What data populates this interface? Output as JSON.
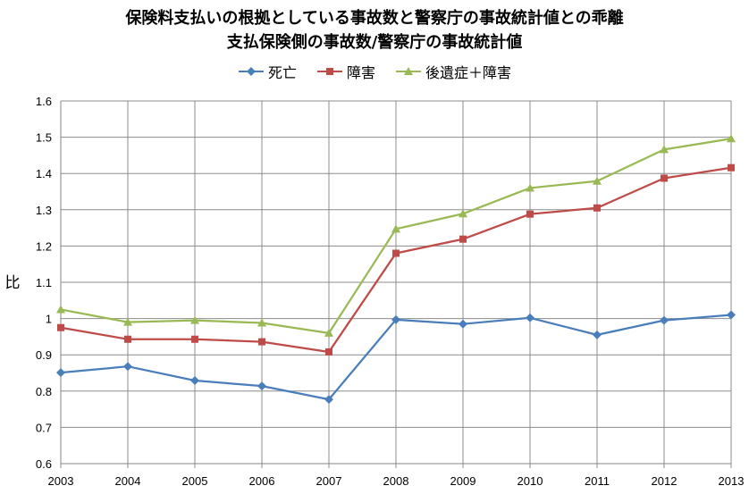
{
  "chart_data": {
    "type": "line",
    "title": "保険料支払いの根拠としている事故数と警察庁の事故統計値との乖離",
    "subtitle": "支払保険側の事故数/警察庁の事故統計値",
    "ylabel": "比",
    "xlabel": "",
    "categories": [
      "2003",
      "2004",
      "2005",
      "2006",
      "2007",
      "2008",
      "2009",
      "2010",
      "2011",
      "2012",
      "2013"
    ],
    "y_ticks": [
      "0.6",
      "0.7",
      "0.8",
      "0.9",
      "1",
      "1.1",
      "1.2",
      "1.3",
      "1.4",
      "1.5",
      "1.6"
    ],
    "ylim": [
      0.6,
      1.6
    ],
    "grid": true,
    "legend_position": "top",
    "series": [
      {
        "name": "死亡",
        "color": "#4a7ebb",
        "marker": "diamond",
        "values": [
          0.851,
          0.868,
          0.829,
          0.814,
          0.777,
          0.997,
          0.985,
          1.002,
          0.955,
          0.995,
          1.01
        ]
      },
      {
        "name": "障害",
        "color": "#be4b48",
        "marker": "square",
        "values": [
          0.975,
          0.943,
          0.943,
          0.936,
          0.908,
          1.18,
          1.219,
          1.288,
          1.305,
          1.387,
          1.416
        ]
      },
      {
        "name": "後遺症＋障害",
        "color": "#98b954",
        "marker": "triangle",
        "values": [
          1.025,
          0.99,
          0.995,
          0.988,
          0.96,
          1.247,
          1.289,
          1.36,
          1.379,
          1.466,
          1.496
        ]
      }
    ]
  }
}
